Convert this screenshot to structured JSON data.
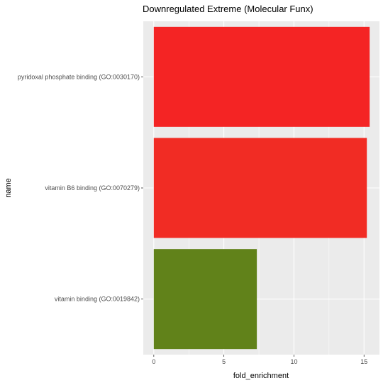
{
  "chart_data": {
    "type": "bar",
    "orientation": "horizontal",
    "title": "Downregulated Extreme (Molecular Funx)",
    "xlabel": "fold_enrichment",
    "ylabel": "name",
    "categories": [
      "pyridoxal phosphate binding (GO:0030170)",
      "vitamin B6 binding (GO:0070279)",
      "vitamin binding (GO:0019842)"
    ],
    "values": [
      15.4,
      15.2,
      7.35
    ],
    "colors": [
      "#f42424",
      "#f12c24",
      "#61821a"
    ],
    "xlim": [
      -0.75,
      16.1
    ],
    "xticks": [
      0,
      5,
      10,
      15
    ],
    "grid": true,
    "panel_background": "#ebebeb",
    "legend": "none"
  }
}
